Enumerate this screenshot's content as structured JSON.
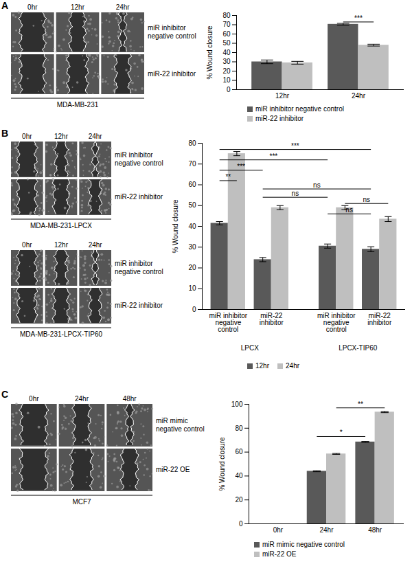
{
  "chart_data": [
    {
      "type": "bar",
      "categories": [
        "12hr",
        "24hr"
      ],
      "series": [
        {
          "name": "miR inhibitor negative control",
          "color": "#595959",
          "values": [
            30,
            70.5
          ],
          "errors": [
            2,
            1
          ]
        },
        {
          "name": "miR-22 inhibitor",
          "color": "#bfbfbf",
          "values": [
            29,
            48
          ],
          "errors": [
            1.5,
            1
          ]
        }
      ],
      "y_label": "% Wound closure",
      "ylim": [
        0,
        80
      ],
      "yticks": [
        0,
        10,
        20,
        30,
        40,
        50,
        60,
        70,
        80
      ],
      "grid": false,
      "legend": "bottom",
      "annotations": [
        {
          "text": "***",
          "from": {
            "category": "24hr",
            "series": "miR inhibitor negative control"
          },
          "to": {
            "category": "24hr",
            "series": "miR-22 inhibitor"
          },
          "y": 73
        }
      ]
    },
    {
      "type": "bar",
      "groups": [
        {
          "name": "LPCX",
          "categories": [
            "miR inhibitor negative control",
            "miR-22 inhibitor"
          ]
        },
        {
          "name": "LPCX-TIP60",
          "categories": [
            "miR inhibitor negative control",
            "miR-22 inhibitor"
          ]
        }
      ],
      "series": [
        {
          "name": "12hr",
          "color": "#595959",
          "values": [
            41.5,
            24,
            30.5,
            29
          ],
          "errors": [
            0.8,
            1,
            1,
            1.2
          ]
        },
        {
          "name": "24hr",
          "color": "#bfbfbf",
          "values": [
            75,
            49,
            49,
            43.5
          ],
          "errors": [
            1,
            1,
            1,
            1.2
          ]
        }
      ],
      "y_label": "% Wound closure",
      "ylim": [
        0,
        80
      ],
      "yticks": [
        0,
        10,
        20,
        30,
        40,
        50,
        60,
        70,
        80
      ],
      "grid": false,
      "legend": "bottom",
      "annotations": [
        {
          "text": "***",
          "from": {
            "group": "LPCX",
            "category": "miR inhibitor negative control",
            "series": "12hr"
          },
          "to": {
            "group": "LPCX-TIP60",
            "category": "miR-22 inhibitor",
            "series": "12hr"
          },
          "y": 77
        },
        {
          "text": "***",
          "from": {
            "group": "LPCX",
            "category": "miR inhibitor negative control",
            "series": "12hr"
          },
          "to": {
            "group": "LPCX-TIP60",
            "category": "miR inhibitor negative control",
            "series": "12hr"
          },
          "y": 72
        },
        {
          "text": "***",
          "from": {
            "group": "LPCX",
            "category": "miR inhibitor negative control",
            "series": "12hr"
          },
          "to": {
            "group": "LPCX",
            "category": "miR-22 inhibitor",
            "series": "12hr"
          },
          "y": 67
        },
        {
          "text": "**",
          "from": {
            "group": "LPCX",
            "category": "miR inhibitor negative control",
            "series": "12hr"
          },
          "to": {
            "group": "LPCX",
            "category": "miR inhibitor negative control",
            "series": "24hr"
          },
          "y": 62
        },
        {
          "text": "ns",
          "from": {
            "group": "LPCX",
            "category": "miR-22 inhibitor",
            "series": "12hr"
          },
          "to": {
            "group": "LPCX-TIP60",
            "category": "miR-22 inhibitor",
            "series": "12hr"
          },
          "y": 58
        },
        {
          "text": "ns",
          "from": {
            "group": "LPCX",
            "category": "miR-22 inhibitor",
            "series": "12hr"
          },
          "to": {
            "group": "LPCX-TIP60",
            "category": "miR inhibitor negative control",
            "series": "12hr"
          },
          "y": 54
        },
        {
          "text": "ns",
          "from": {
            "group": "LPCX-TIP60",
            "category": "miR inhibitor negative control",
            "series": "24hr"
          },
          "to": {
            "group": "LPCX-TIP60",
            "category": "miR-22 inhibitor",
            "series": "24hr"
          },
          "y": 51
        },
        {
          "text": "ns",
          "from": {
            "group": "LPCX-TIP60",
            "category": "miR inhibitor negative control",
            "series": "12hr"
          },
          "to": {
            "group": "LPCX-TIP60",
            "category": "miR-22 inhibitor",
            "series": "12hr"
          },
          "y": 46
        }
      ]
    },
    {
      "type": "bar",
      "categories": [
        "0hr",
        "24hr",
        "48hr"
      ],
      "series": [
        {
          "name": "miR mimic negative control",
          "color": "#595959",
          "values": [
            0,
            44,
            68.5
          ],
          "errors": [
            0,
            0.4,
            0.4
          ]
        },
        {
          "name": "miR-22 OE",
          "color": "#bfbfbf",
          "values": [
            0,
            58.5,
            93.5
          ],
          "errors": [
            0,
            0.4,
            0.5
          ]
        }
      ],
      "y_label": "% Wound closure",
      "ylim": [
        0,
        100
      ],
      "yticks": [
        0,
        20,
        40,
        60,
        80,
        100
      ],
      "grid": false,
      "legend": "bottom",
      "annotations": [
        {
          "text": "*",
          "from": {
            "category": "24hr",
            "series": "miR mimic negative control"
          },
          "to": {
            "category": "48hr",
            "series": "miR mimic negative control"
          },
          "y": 73
        },
        {
          "text": "**",
          "from": {
            "category": "24hr",
            "series": "miR-22 OE"
          },
          "to": {
            "category": "48hr",
            "series": "miR-22 OE"
          },
          "y": 97
        }
      ]
    }
  ],
  "panels": [
    {
      "label": "A",
      "image_blocks": [
        {
          "columns": [
            "0hr",
            "12hr",
            "24hr"
          ],
          "rows": [
            "miR inhibitor negative control",
            "miR-22 inhibitor"
          ],
          "caption": "MDA-MB-231"
        }
      ]
    },
    {
      "label": "B",
      "image_blocks": [
        {
          "columns": [
            "0hr",
            "12hr",
            "24hr"
          ],
          "rows": [
            "miR inhibitor negative control",
            "miR-22 inhibitor"
          ],
          "caption": "MDA-MB-231-LPCX"
        },
        {
          "columns": [
            "0hr",
            "12hr",
            "24hr"
          ],
          "rows": [
            "miR inhibitor negative control",
            "miR-22 inhibitor"
          ],
          "caption": "MDA-MB-231-LPCX-TIP60"
        }
      ]
    },
    {
      "label": "C",
      "image_blocks": [
        {
          "columns": [
            "0hr",
            "24hr",
            "48hr"
          ],
          "rows": [
            "miR mimic negative control",
            "miR-22 OE"
          ],
          "caption": "MCF7"
        }
      ]
    }
  ]
}
